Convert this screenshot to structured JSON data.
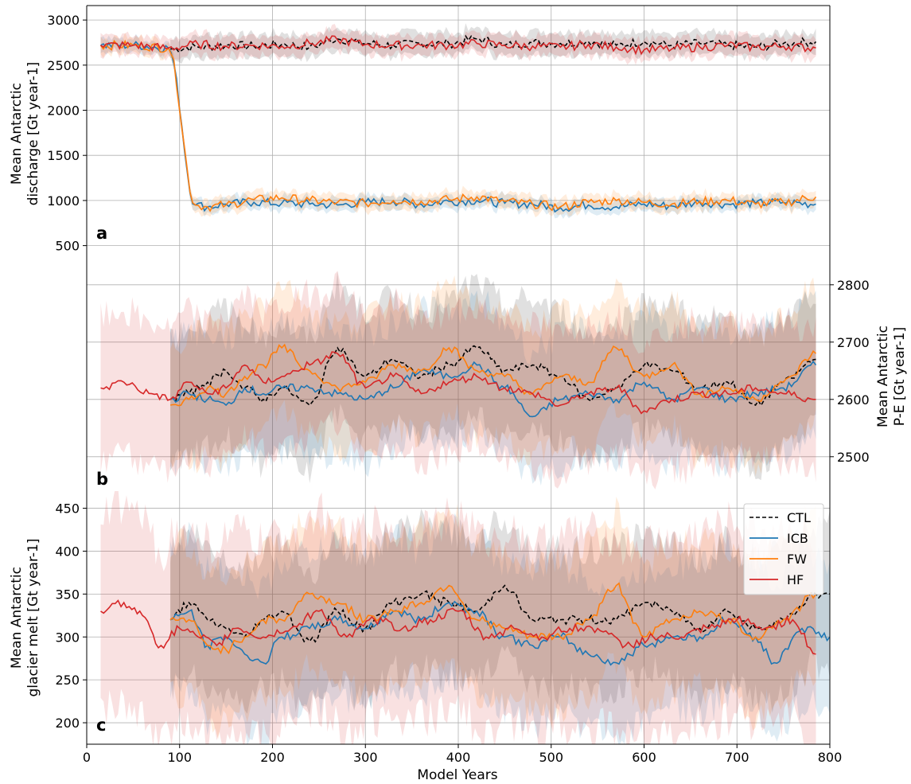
{
  "colors": {
    "CTL": "#000000",
    "ICB": "#1f77b4",
    "FW": "#ff7f0e",
    "HF": "#d62728",
    "grid": "#b0b0b0",
    "band_overlap": "#a57a6c"
  },
  "legend": {
    "location": "right side of panel c, upper portion",
    "entries": [
      {
        "key": "CTL",
        "label": "CTL",
        "style": "dashed"
      },
      {
        "key": "ICB",
        "label": "ICB",
        "style": "solid"
      },
      {
        "key": "FW",
        "label": "FW",
        "style": "solid"
      },
      {
        "key": "HF",
        "label": "HF",
        "style": "solid"
      }
    ]
  },
  "xaxis": {
    "label": "Model Years",
    "lim": [
      0,
      800
    ],
    "ticks": [
      0,
      100,
      200,
      300,
      400,
      500,
      600,
      700,
      800
    ]
  },
  "chart_data": [
    {
      "panel": "a",
      "type": "line",
      "ylabel_lines": [
        "Mean Antarctic",
        "discharge [Gt year-1]"
      ],
      "yaxis_side": "left",
      "ylim": [
        320,
        3160
      ],
      "yticks": [
        500,
        1000,
        1500,
        2000,
        2500,
        3000
      ],
      "grid": true,
      "shaded_bands": true,
      "series": [
        {
          "key": "CTL",
          "x": [
            90,
            120,
            150,
            180,
            210,
            240,
            270,
            300,
            330,
            360,
            390,
            420,
            450,
            480,
            510,
            540,
            570,
            600,
            630,
            660,
            690,
            720,
            750,
            785
          ],
          "y": [
            2680,
            2700,
            2720,
            2710,
            2730,
            2700,
            2790,
            2740,
            2720,
            2740,
            2740,
            2790,
            2720,
            2750,
            2740,
            2760,
            2720,
            2760,
            2720,
            2740,
            2720,
            2700,
            2740,
            2760
          ],
          "band": 120
        },
        {
          "key": "ICB",
          "x": [
            15,
            50,
            88,
            117,
            130,
            150,
            180,
            210,
            240,
            270,
            300,
            330,
            360,
            390,
            420,
            450,
            480,
            510,
            540,
            570,
            600,
            630,
            660,
            690,
            720,
            750,
            785
          ],
          "y": [
            2720,
            2720,
            2690,
            950,
            930,
            960,
            980,
            970,
            960,
            950,
            980,
            990,
            960,
            990,
            1000,
            970,
            960,
            920,
            950,
            930,
            960,
            940,
            980,
            960,
            970,
            980,
            960
          ],
          "band": 70
        },
        {
          "key": "FW",
          "x": [
            15,
            50,
            88,
            117,
            130,
            150,
            180,
            210,
            240,
            270,
            300,
            330,
            360,
            390,
            420,
            450,
            480,
            510,
            540,
            570,
            600,
            630,
            660,
            690,
            720,
            750,
            785
          ],
          "y": [
            2720,
            2720,
            2690,
            950,
            930,
            950,
            1010,
            1030,
            1000,
            980,
            970,
            1000,
            990,
            1010,
            1040,
            990,
            960,
            930,
            980,
            1000,
            980,
            960,
            990,
            1000,
            960,
            980,
            1040
          ],
          "band": 80
        },
        {
          "key": "HF",
          "x": [
            15,
            50,
            88,
            120,
            150,
            180,
            210,
            240,
            270,
            300,
            330,
            360,
            390,
            420,
            450,
            480,
            510,
            540,
            570,
            600,
            630,
            660,
            690,
            720,
            750,
            785
          ],
          "y": [
            2720,
            2720,
            2690,
            2730,
            2710,
            2720,
            2710,
            2740,
            2780,
            2730,
            2720,
            2720,
            2720,
            2740,
            2720,
            2710,
            2700,
            2730,
            2700,
            2670,
            2680,
            2700,
            2720,
            2700,
            2710,
            2690
          ],
          "band": 110
        }
      ]
    },
    {
      "panel": "b",
      "type": "line",
      "ylabel_lines": [
        "Mean Antarctic",
        "P-E [Gt year-1]"
      ],
      "yaxis_side": "right",
      "ylim": [
        2440,
        2840
      ],
      "yticks": [
        2500,
        2600,
        2700,
        2800
      ],
      "grid": true,
      "shaded_bands": true,
      "series": [
        {
          "key": "CTL",
          "x": [
            90,
            110,
            130,
            150,
            170,
            190,
            210,
            240,
            270,
            300,
            330,
            360,
            390,
            420,
            450,
            480,
            510,
            540,
            570,
            600,
            630,
            660,
            690,
            720,
            750,
            785
          ],
          "y": [
            2600,
            2610,
            2630,
            2650,
            2620,
            2600,
            2620,
            2590,
            2690,
            2640,
            2670,
            2640,
            2660,
            2690,
            2650,
            2660,
            2640,
            2600,
            2620,
            2660,
            2650,
            2620,
            2630,
            2590,
            2630,
            2670
          ],
          "band": 110
        },
        {
          "key": "ICB",
          "x": [
            90,
            110,
            130,
            150,
            170,
            190,
            210,
            240,
            270,
            300,
            330,
            360,
            390,
            420,
            450,
            480,
            510,
            540,
            570,
            600,
            630,
            660,
            690,
            720,
            750,
            785
          ],
          "y": [
            2600,
            2610,
            2600,
            2590,
            2620,
            2610,
            2620,
            2620,
            2610,
            2600,
            2620,
            2650,
            2640,
            2660,
            2620,
            2570,
            2600,
            2610,
            2600,
            2630,
            2600,
            2620,
            2600,
            2610,
            2620,
            2660
          ],
          "band": 110
        },
        {
          "key": "FW",
          "x": [
            90,
            110,
            130,
            150,
            170,
            190,
            210,
            240,
            270,
            300,
            330,
            360,
            390,
            420,
            450,
            480,
            510,
            540,
            570,
            600,
            630,
            660,
            690,
            720,
            750,
            785
          ],
          "y": [
            2590,
            2600,
            2620,
            2610,
            2640,
            2660,
            2690,
            2650,
            2620,
            2630,
            2660,
            2650,
            2690,
            2650,
            2640,
            2610,
            2640,
            2630,
            2690,
            2640,
            2660,
            2610,
            2620,
            2600,
            2630,
            2680
          ],
          "band": 110
        },
        {
          "key": "HF",
          "x": [
            15,
            40,
            70,
            90,
            110,
            130,
            150,
            170,
            190,
            210,
            240,
            270,
            300,
            330,
            360,
            390,
            420,
            450,
            480,
            510,
            540,
            570,
            600,
            630,
            660,
            690,
            720,
            750,
            785
          ],
          "y": [
            2620,
            2630,
            2610,
            2600,
            2630,
            2610,
            2620,
            2660,
            2630,
            2640,
            2660,
            2680,
            2620,
            2640,
            2610,
            2630,
            2640,
            2620,
            2610,
            2590,
            2610,
            2620,
            2580,
            2600,
            2610,
            2610,
            2620,
            2610,
            2600
          ],
          "band": 120
        }
      ]
    },
    {
      "panel": "c",
      "type": "line",
      "ylabel_lines": [
        "Mean Antarctic",
        "glacier melt [Gt year-1]"
      ],
      "yaxis_side": "left",
      "ylim": [
        175,
        470
      ],
      "yticks": [
        200,
        250,
        300,
        350,
        400,
        450
      ],
      "grid": true,
      "shaded_bands": true,
      "series": [
        {
          "key": "CTL",
          "x": [
            90,
            110,
            130,
            150,
            170,
            190,
            210,
            240,
            270,
            300,
            330,
            360,
            390,
            420,
            450,
            480,
            510,
            540,
            570,
            600,
            630,
            660,
            690,
            720,
            750,
            785,
            800
          ],
          "y": [
            320,
            340,
            320,
            310,
            300,
            320,
            330,
            295,
            330,
            310,
            340,
            350,
            340,
            330,
            360,
            320,
            320,
            320,
            320,
            340,
            330,
            310,
            330,
            310,
            320,
            350,
            350
          ],
          "band": 80
        },
        {
          "key": "ICB",
          "x": [
            90,
            110,
            130,
            150,
            170,
            190,
            210,
            240,
            270,
            300,
            330,
            360,
            390,
            420,
            450,
            480,
            510,
            540,
            570,
            600,
            630,
            660,
            690,
            720,
            740,
            770,
            800
          ],
          "y": [
            320,
            330,
            290,
            300,
            280,
            270,
            300,
            310,
            320,
            310,
            330,
            320,
            340,
            330,
            300,
            290,
            300,
            280,
            270,
            290,
            300,
            300,
            320,
            300,
            270,
            310,
            300
          ],
          "band": 85
        },
        {
          "key": "FW",
          "x": [
            90,
            110,
            130,
            150,
            170,
            190,
            210,
            240,
            270,
            300,
            330,
            360,
            390,
            420,
            450,
            480,
            510,
            540,
            570,
            600,
            630,
            660,
            690,
            720,
            750,
            785
          ],
          "y": [
            320,
            320,
            290,
            285,
            300,
            320,
            320,
            350,
            340,
            320,
            330,
            340,
            360,
            320,
            310,
            300,
            300,
            320,
            360,
            300,
            320,
            330,
            320,
            300,
            320,
            350
          ],
          "band": 85
        },
        {
          "key": "HF",
          "x": [
            15,
            40,
            60,
            80,
            100,
            120,
            140,
            160,
            190,
            220,
            250,
            280,
            310,
            340,
            370,
            400,
            430,
            460,
            490,
            520,
            550,
            580,
            610,
            640,
            670,
            700,
            730,
            760,
            785
          ],
          "y": [
            330,
            340,
            325,
            290,
            310,
            300,
            290,
            310,
            300,
            310,
            330,
            300,
            320,
            310,
            320,
            330,
            300,
            310,
            300,
            310,
            310,
            290,
            300,
            300,
            310,
            320,
            310,
            320,
            280
          ],
          "band": 110
        }
      ]
    }
  ]
}
